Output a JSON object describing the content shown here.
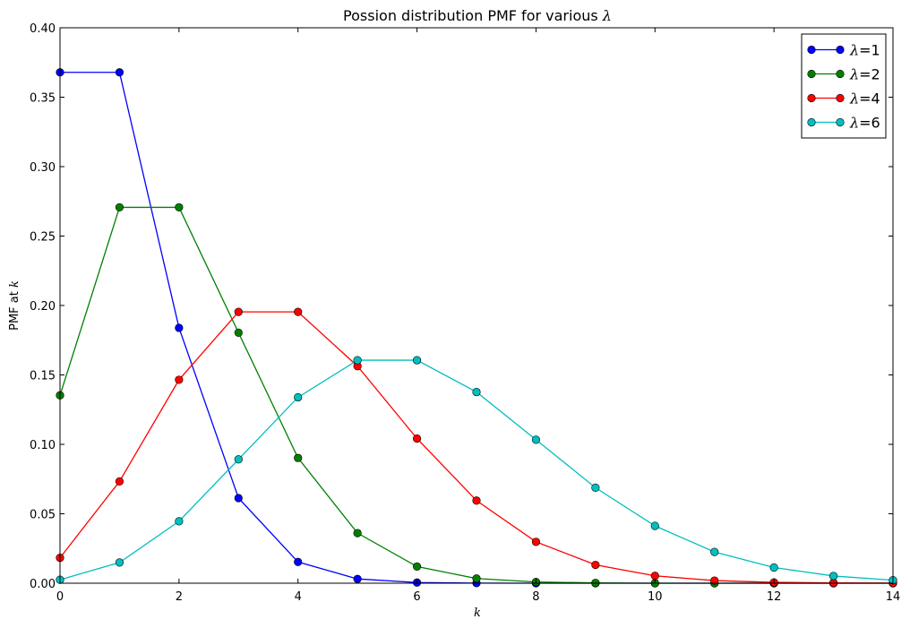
{
  "chart_data": {
    "type": "line",
    "title": "Possion distribution PMF for various ",
    "title_symbol": "λ",
    "xlabel": "k",
    "ylabel": "PMF at ",
    "ylabel_symbol": "k",
    "xlim": [
      0,
      14
    ],
    "ylim": [
      0,
      0.4
    ],
    "xticks": [
      0,
      2,
      4,
      6,
      8,
      10,
      12,
      14
    ],
    "xtick_labels": [
      "0",
      "2",
      "4",
      "6",
      "8",
      "10",
      "12",
      "14"
    ],
    "yticks": [
      0,
      0.05,
      0.1,
      0.15,
      0.2,
      0.25,
      0.3,
      0.35,
      0.4
    ],
    "ytick_labels": [
      "0.00",
      "0.05",
      "0.10",
      "0.15",
      "0.20",
      "0.25",
      "0.30",
      "0.35",
      "0.40"
    ],
    "grid": false,
    "legend_position": "top-right",
    "x": [
      0,
      1,
      2,
      3,
      4,
      5,
      6,
      7,
      8,
      9,
      10,
      11,
      12,
      13,
      14
    ],
    "series": [
      {
        "name": "λ=1",
        "symbol": "λ",
        "suffix": "=1",
        "color": "#0000ff",
        "values": [
          0.3679,
          0.3679,
          0.1839,
          0.0613,
          0.0153,
          0.0031,
          0.0005,
          0.0001,
          0.0,
          0.0,
          0.0,
          0.0,
          0.0,
          0.0,
          0.0
        ]
      },
      {
        "name": "λ=2",
        "symbol": "λ",
        "suffix": "=2",
        "color": "#008000",
        "values": [
          0.1353,
          0.2707,
          0.2707,
          0.1804,
          0.0902,
          0.0361,
          0.012,
          0.0034,
          0.0009,
          0.0002,
          0.0,
          0.0,
          0.0,
          0.0,
          0.0
        ]
      },
      {
        "name": "λ=4",
        "symbol": "λ",
        "suffix": "=4",
        "color": "#ff0000",
        "values": [
          0.0183,
          0.0733,
          0.1465,
          0.1954,
          0.1954,
          0.1563,
          0.1042,
          0.0595,
          0.0298,
          0.0132,
          0.0053,
          0.0019,
          0.0006,
          0.0002,
          0.0001
        ]
      },
      {
        "name": "λ=6",
        "symbol": "λ",
        "suffix": "=6",
        "color": "#00bfbf",
        "values": [
          0.0025,
          0.0149,
          0.0446,
          0.0892,
          0.1339,
          0.1606,
          0.1606,
          0.1377,
          0.1033,
          0.0688,
          0.0413,
          0.0225,
          0.0113,
          0.0052,
          0.0022
        ]
      }
    ]
  }
}
